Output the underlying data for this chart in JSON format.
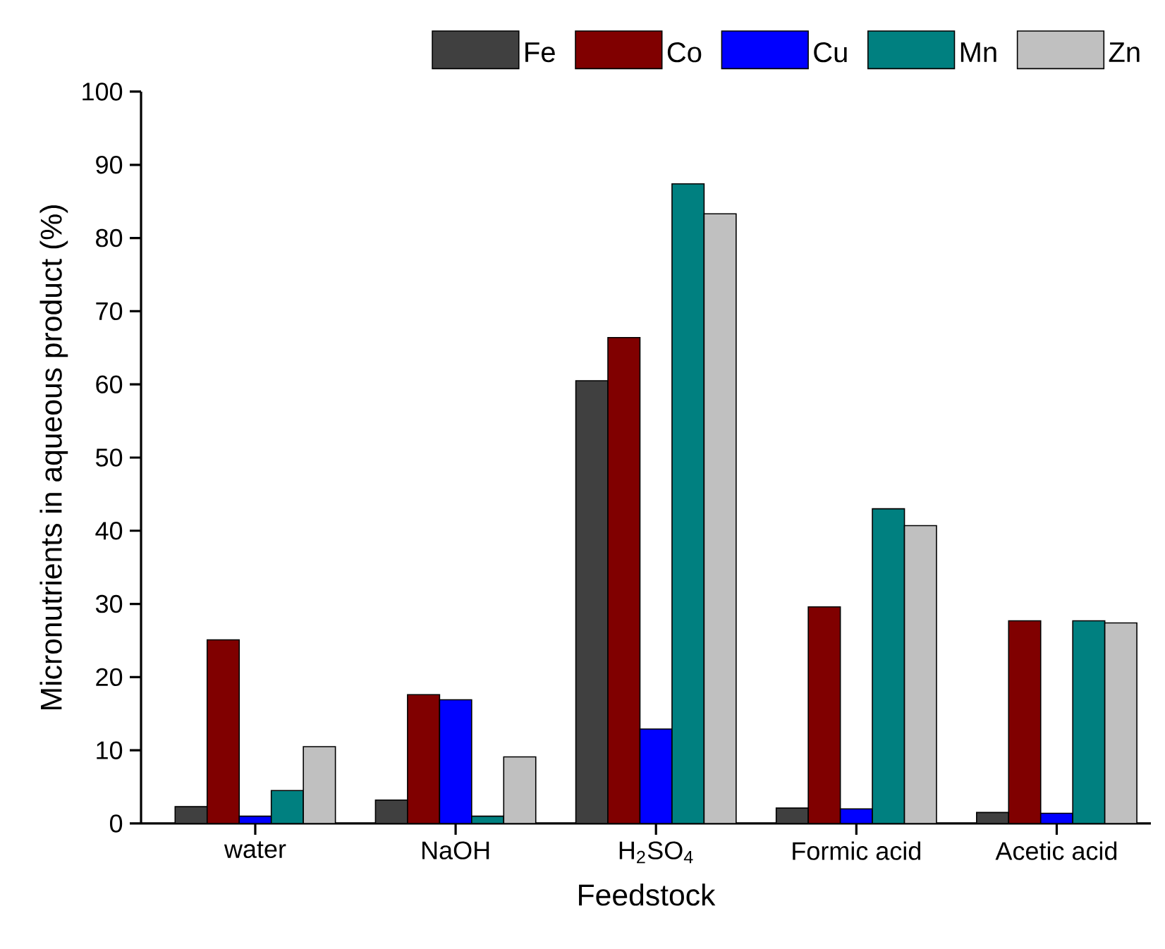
{
  "chart_data": {
    "type": "bar",
    "xlabel": "Feedstock",
    "ylabel": "Micronutrients in aqueous product (%)",
    "categories": [
      "water",
      "NaOH",
      "H$_{2}$SO$_{4}$",
      "Formic acid",
      "Acetic acid"
    ],
    "series": [
      {
        "name": "Fe",
        "color": "#404040",
        "values": [
          2.3,
          3.2,
          60.5,
          2.1,
          1.5
        ]
      },
      {
        "name": "Co",
        "color": "#800000",
        "values": [
          25.1,
          17.6,
          66.4,
          29.6,
          27.7
        ]
      },
      {
        "name": "Cu",
        "color": "#0000ff",
        "values": [
          1.0,
          16.9,
          12.9,
          2.0,
          1.4
        ]
      },
      {
        "name": "Mn",
        "color": "#008080",
        "values": [
          4.5,
          1.0,
          87.4,
          43.0,
          27.7
        ]
      },
      {
        "name": "Zn",
        "color": "#c0c0c0",
        "values": [
          10.5,
          9.1,
          83.3,
          40.7,
          27.4
        ]
      }
    ],
    "ylim": [
      0,
      100
    ],
    "yticks": [
      0,
      10,
      20,
      30,
      40,
      50,
      60,
      70,
      80,
      90,
      100
    ],
    "grid": false,
    "legend": "top right"
  }
}
